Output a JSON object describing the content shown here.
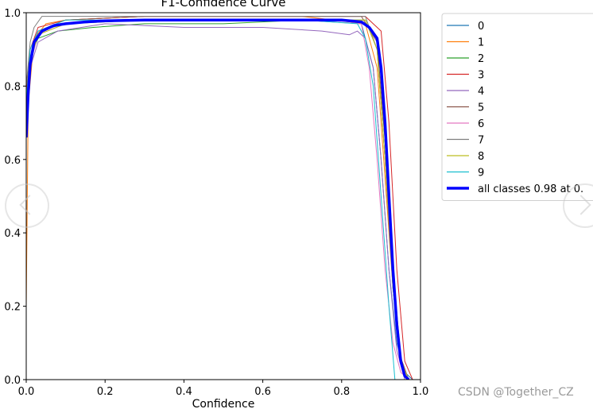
{
  "chart_data": {
    "type": "line",
    "title": "F1-Confidence Curve",
    "xlabel": "Confidence",
    "ylabel": "",
    "xlim": [
      0,
      1
    ],
    "ylim": [
      0,
      1
    ],
    "xticks": [
      "0.0",
      "0.2",
      "0.4",
      "0.6",
      "0.8",
      "1.0"
    ],
    "yticks": [
      "0.0",
      "0.2",
      "0.4",
      "0.6",
      "0.8",
      "1.0"
    ],
    "legend_position": "outside-right",
    "grid": false,
    "series": [
      {
        "name": "0",
        "color": "#1f77b4",
        "x": [
          0.0,
          0.01,
          0.03,
          0.1,
          0.3,
          0.5,
          0.7,
          0.85,
          0.88,
          0.9,
          0.92,
          0.94,
          0.96,
          0.98
        ],
        "y": [
          0.72,
          0.88,
          0.95,
          0.97,
          0.98,
          0.98,
          0.98,
          0.97,
          0.85,
          0.6,
          0.3,
          0.1,
          0.02,
          0.0
        ]
      },
      {
        "name": "1",
        "color": "#ff7f0e",
        "x": [
          0.0,
          0.005,
          0.02,
          0.05,
          0.1,
          0.3,
          0.5,
          0.7,
          0.86,
          0.89,
          0.91,
          0.93,
          0.95,
          0.97
        ],
        "y": [
          0.2,
          0.75,
          0.93,
          0.97,
          0.98,
          0.99,
          0.99,
          0.99,
          0.97,
          0.85,
          0.55,
          0.25,
          0.05,
          0.0
        ]
      },
      {
        "name": "2",
        "color": "#2ca02c",
        "x": [
          0.0,
          0.01,
          0.03,
          0.08,
          0.17,
          0.3,
          0.5,
          0.7,
          0.86,
          0.89,
          0.91,
          0.93,
          0.95,
          0.97
        ],
        "y": [
          0.75,
          0.88,
          0.93,
          0.95,
          0.96,
          0.97,
          0.97,
          0.98,
          0.98,
          0.9,
          0.6,
          0.25,
          0.05,
          0.0
        ]
      },
      {
        "name": "3",
        "color": "#d62728",
        "x": [
          0.0,
          0.01,
          0.03,
          0.1,
          0.3,
          0.5,
          0.7,
          0.86,
          0.9,
          0.92,
          0.94,
          0.96,
          0.98
        ],
        "y": [
          0.78,
          0.9,
          0.96,
          0.98,
          0.99,
          0.99,
          0.99,
          0.99,
          0.95,
          0.7,
          0.3,
          0.05,
          0.0
        ]
      },
      {
        "name": "4",
        "color": "#9467bd",
        "x": [
          0.0,
          0.01,
          0.03,
          0.08,
          0.2,
          0.4,
          0.6,
          0.75,
          0.82,
          0.84,
          0.86,
          0.88,
          0.9,
          0.92,
          0.94,
          0.96
        ],
        "y": [
          0.7,
          0.85,
          0.92,
          0.95,
          0.97,
          0.96,
          0.96,
          0.95,
          0.94,
          0.95,
          0.93,
          0.85,
          0.6,
          0.3,
          0.08,
          0.0
        ]
      },
      {
        "name": "5",
        "color": "#8c564b",
        "x": [
          0.0,
          0.01,
          0.03,
          0.1,
          0.3,
          0.5,
          0.7,
          0.85,
          0.89,
          0.91,
          0.93,
          0.95,
          0.97
        ],
        "y": [
          0.74,
          0.88,
          0.95,
          0.98,
          0.99,
          0.99,
          0.99,
          0.99,
          0.92,
          0.65,
          0.3,
          0.06,
          0.0
        ]
      },
      {
        "name": "6",
        "color": "#e377c2",
        "x": [
          0.0,
          0.01,
          0.03,
          0.1,
          0.3,
          0.5,
          0.7,
          0.85,
          0.87,
          0.89,
          0.91,
          0.93,
          0.95,
          0.97
        ],
        "y": [
          0.7,
          0.86,
          0.94,
          0.97,
          0.98,
          0.98,
          0.98,
          0.97,
          0.85,
          0.6,
          0.3,
          0.1,
          0.02,
          0.0
        ]
      },
      {
        "name": "7",
        "color": "#7f7f7f",
        "x": [
          0.0,
          0.01,
          0.02,
          0.04,
          0.1,
          0.3,
          0.5,
          0.7,
          0.86,
          0.89,
          0.91,
          0.93,
          0.95,
          0.97
        ],
        "y": [
          0.8,
          0.92,
          0.96,
          0.99,
          0.99,
          0.99,
          0.99,
          0.99,
          0.99,
          0.9,
          0.6,
          0.25,
          0.05,
          0.0
        ]
      },
      {
        "name": "8",
        "color": "#bcbd22",
        "x": [
          0.0,
          0.01,
          0.03,
          0.1,
          0.3,
          0.5,
          0.7,
          0.86,
          0.89,
          0.91,
          0.93,
          0.95,
          0.97
        ],
        "y": [
          0.72,
          0.87,
          0.94,
          0.97,
          0.98,
          0.98,
          0.98,
          0.98,
          0.9,
          0.6,
          0.28,
          0.05,
          0.0
        ]
      },
      {
        "name": "9",
        "color": "#17becf",
        "x": [
          0.0,
          0.01,
          0.03,
          0.1,
          0.3,
          0.5,
          0.7,
          0.84,
          0.86,
          0.88,
          0.9,
          0.92,
          0.935
        ],
        "y": [
          0.76,
          0.9,
          0.95,
          0.98,
          0.98,
          0.98,
          0.98,
          0.97,
          0.93,
          0.8,
          0.5,
          0.2,
          0.0
        ]
      },
      {
        "name": "all classes 0.98 at 0.",
        "color": "#0000ff",
        "bold": true,
        "x": [
          0.0,
          0.005,
          0.01,
          0.02,
          0.04,
          0.07,
          0.1,
          0.15,
          0.2,
          0.3,
          0.4,
          0.5,
          0.6,
          0.7,
          0.8,
          0.85,
          0.87,
          0.89,
          0.9,
          0.91,
          0.92,
          0.93,
          0.94,
          0.95,
          0.96,
          0.97
        ],
        "y": [
          0.66,
          0.78,
          0.86,
          0.92,
          0.95,
          0.965,
          0.97,
          0.975,
          0.978,
          0.98,
          0.98,
          0.98,
          0.98,
          0.98,
          0.98,
          0.975,
          0.96,
          0.93,
          0.85,
          0.7,
          0.5,
          0.3,
          0.15,
          0.05,
          0.01,
          0.0
        ]
      }
    ]
  },
  "watermark": "CSDN @Together_CZ"
}
